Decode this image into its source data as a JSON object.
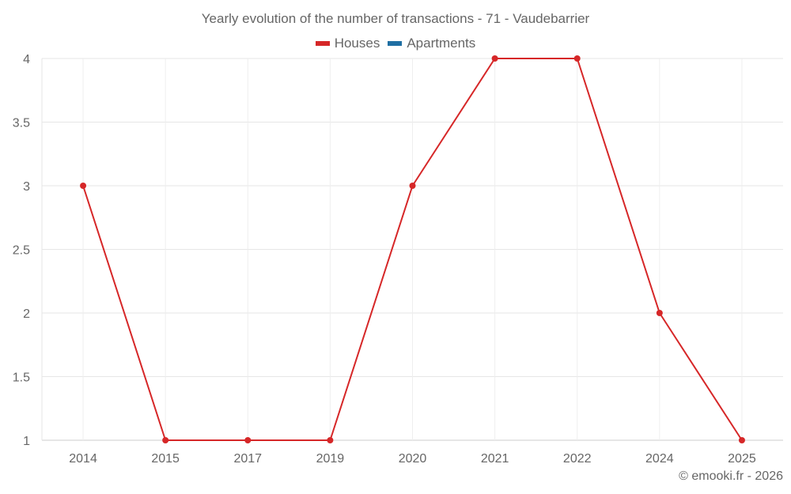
{
  "chart_data": {
    "type": "line",
    "title": "Yearly evolution of the number of transactions - 71 - Vaudebarrier",
    "categories": [
      "2014",
      "2015",
      "2017",
      "2019",
      "2020",
      "2021",
      "2022",
      "2024",
      "2025"
    ],
    "series": [
      {
        "name": "Houses",
        "color": "#d62728",
        "values": [
          3,
          1,
          1,
          1,
          3,
          4,
          4,
          2,
          1
        ]
      },
      {
        "name": "Apartments",
        "color": "#1f6fa3",
        "values": []
      }
    ],
    "xlabel": "",
    "ylabel": "",
    "ylim": [
      1,
      4
    ],
    "yticks": [
      "4",
      "3.5",
      "3",
      "2.5",
      "2",
      "1.5",
      "1"
    ],
    "grid": true,
    "legend_position": "top"
  },
  "header": {
    "title": "Yearly evolution of the number of transactions - 71 - Vaudebarrier"
  },
  "legend": {
    "items": [
      {
        "label": "Houses",
        "color": "#d62728"
      },
      {
        "label": "Apartments",
        "color": "#1f6fa3"
      }
    ]
  },
  "footer": {
    "credit": "© emooki.fr - 2026"
  }
}
